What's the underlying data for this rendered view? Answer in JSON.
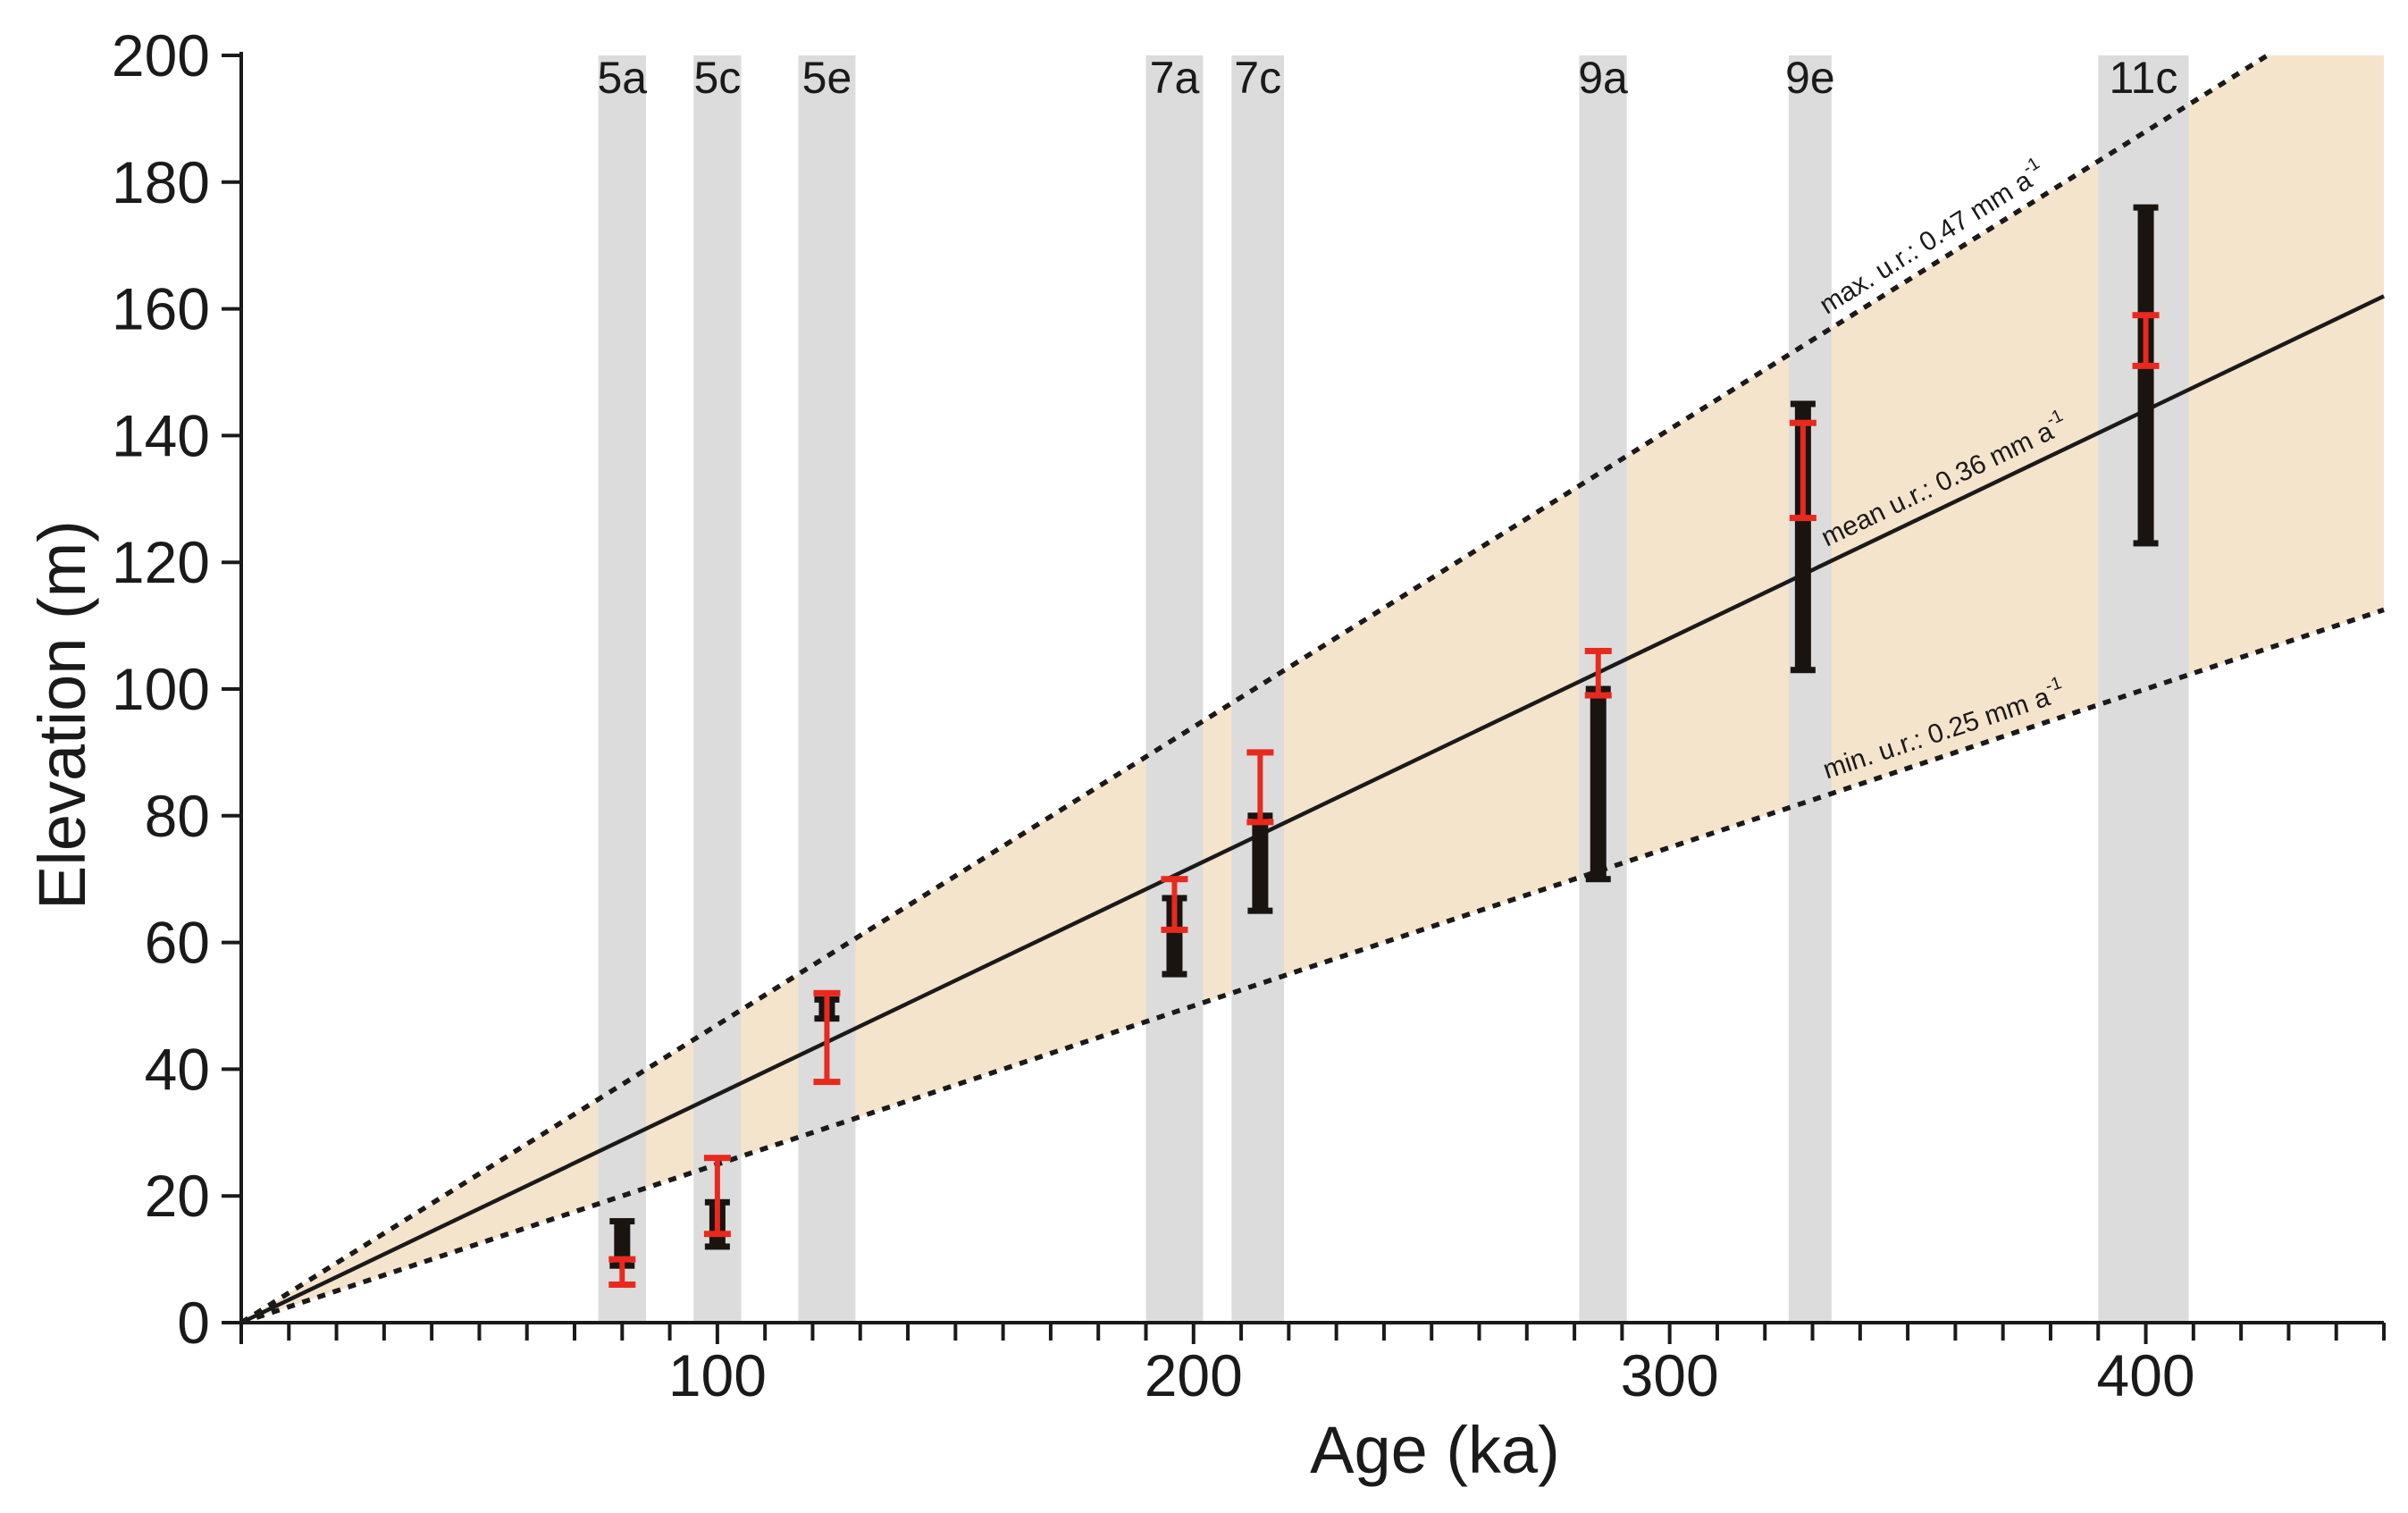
{
  "chart_data": {
    "type": "scatter",
    "title": "",
    "xlabel": "Age (ka)",
    "ylabel": "Elevation (m)",
    "xlim": [
      0,
      450
    ],
    "ylim": [
      0,
      200
    ],
    "x_ticks": [
      100,
      200,
      300,
      400
    ],
    "x_minor_step": 10,
    "y_ticks": [
      0,
      20,
      40,
      60,
      80,
      100,
      120,
      140,
      160,
      180,
      200
    ],
    "grid": false,
    "legend": "none",
    "colors": {
      "band": "#f5e4cc",
      "stage": "#dcdcdc",
      "black_bar": "#1a1410",
      "red_bar": "#e8291e",
      "axis": "#1a1a1a"
    },
    "uplift_band": {
      "from_rate": 0.25,
      "to_rate": 0.47,
      "x_max": 450
    },
    "marine_isotope_stages": [
      {
        "label": "5a",
        "x_range": [
          75,
          85
        ]
      },
      {
        "label": "5c",
        "x_range": [
          95,
          105
        ]
      },
      {
        "label": "5e",
        "x_range": [
          117,
          129
        ]
      },
      {
        "label": "7a",
        "x_range": [
          190,
          202
        ]
      },
      {
        "label": "7c",
        "x_range": [
          208,
          219
        ]
      },
      {
        "label": "9a",
        "x_range": [
          281,
          291
        ]
      },
      {
        "label": "9e",
        "x_range": [
          325,
          334
        ]
      },
      {
        "label": "11c",
        "x_range": [
          390,
          409
        ]
      }
    ],
    "uplift_lines": [
      {
        "name": "max",
        "rate": 0.47,
        "style": "dotted",
        "label": "max. u.r.: 0.47 mm a",
        "superscript": "-1",
        "label_at_x": 333
      },
      {
        "name": "mean",
        "rate": 0.36,
        "style": "solid",
        "label": "mean u.r.: 0.36 mm a",
        "superscript": "-1",
        "label_at_x": 333
      },
      {
        "name": "min",
        "rate": 0.25,
        "style": "dotted",
        "label": "min. u.r.: 0.25 mm a",
        "superscript": "-1",
        "label_at_x": 333
      }
    ],
    "series": [
      {
        "name": "black bars",
        "color": "#1a1410",
        "points": [
          {
            "x": 80,
            "y_low": 9,
            "y_high": 16
          },
          {
            "x": 100,
            "y_low": 12,
            "y_high": 19
          },
          {
            "x": 123,
            "y_low": 48,
            "y_high": 51
          },
          {
            "x": 196,
            "y_low": 55,
            "y_high": 67
          },
          {
            "x": 214,
            "y_low": 65,
            "y_high": 80
          },
          {
            "x": 285,
            "y_low": 70,
            "y_high": 100
          },
          {
            "x": 328,
            "y_low": 103,
            "y_high": 145
          },
          {
            "x": 400,
            "y_low": 123,
            "y_high": 176
          }
        ]
      },
      {
        "name": "red bars",
        "color": "#e8291e",
        "points": [
          {
            "x": 80,
            "y_low": 6,
            "y_high": 10
          },
          {
            "x": 100,
            "y_low": 14,
            "y_high": 26
          },
          {
            "x": 123,
            "y_low": 38,
            "y_high": 52
          },
          {
            "x": 196,
            "y_low": 62,
            "y_high": 70
          },
          {
            "x": 214,
            "y_low": 79,
            "y_high": 90
          },
          {
            "x": 285,
            "y_low": 99,
            "y_high": 106
          },
          {
            "x": 328,
            "y_low": 127,
            "y_high": 142
          },
          {
            "x": 400,
            "y_low": 151,
            "y_high": 159
          }
        ]
      }
    ]
  }
}
